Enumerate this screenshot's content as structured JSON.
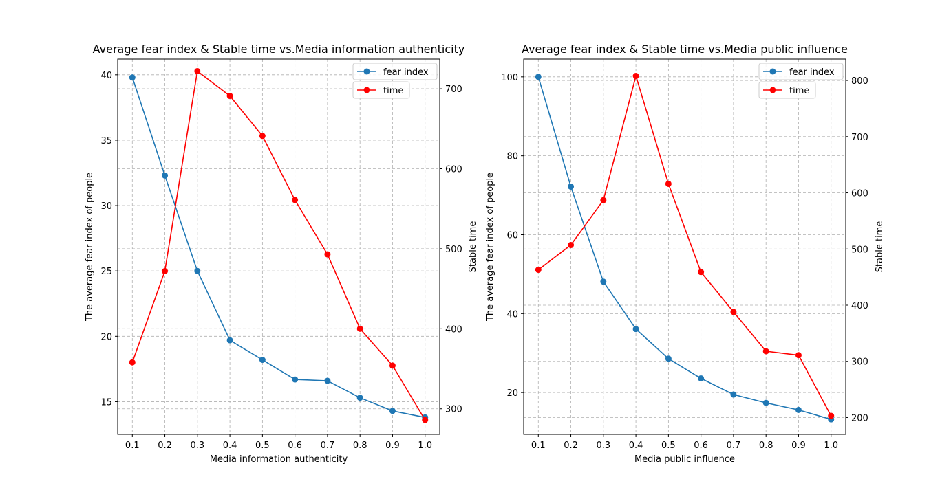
{
  "chart_data": [
    {
      "type": "line",
      "title": "Average fear index & Stable time vs.Media information authenticity",
      "xlabel": "Media information authenticity",
      "ylabel": "The average fear index of people",
      "ylabel_right": "Stable time",
      "x": [
        0.1,
        0.2,
        0.3,
        0.4,
        0.5,
        0.6,
        0.7,
        0.8,
        0.9,
        1.0
      ],
      "x_ticks": [
        "0.1",
        "0.2",
        "0.3",
        "0.4",
        "0.5",
        "0.6",
        "0.7",
        "0.8",
        "0.9",
        "1.0"
      ],
      "xlim": [
        0.055,
        1.045
      ],
      "ylim": [
        12.5,
        41.2
      ],
      "ylim_right": [
        268,
        737
      ],
      "y_ticks": [
        15,
        20,
        25,
        30,
        35,
        40
      ],
      "y_ticks_right": [
        300,
        400,
        500,
        600,
        700
      ],
      "grid": true,
      "legend_position": "top-right",
      "series": [
        {
          "name": "fear index",
          "axis": "left",
          "color": "#1f77b4",
          "values": [
            39.8,
            32.3,
            25.0,
            19.7,
            18.2,
            16.7,
            16.6,
            15.3,
            14.3,
            13.8
          ]
        },
        {
          "name": "time",
          "axis": "right",
          "color": "#ff0000",
          "values": [
            358,
            472,
            722,
            691,
            641,
            561,
            493,
            400,
            354,
            286
          ]
        }
      ]
    },
    {
      "type": "line",
      "title": "Average fear index & Stable time vs.Media public influence",
      "xlabel": "Media public influence",
      "ylabel": "The average fear index of people",
      "ylabel_right": "Stable time",
      "x": [
        0.1,
        0.2,
        0.3,
        0.4,
        0.5,
        0.6,
        0.7,
        0.8,
        0.9,
        1.0
      ],
      "x_ticks": [
        "0.1",
        "0.2",
        "0.3",
        "0.4",
        "0.5",
        "0.6",
        "0.7",
        "0.8",
        "0.9",
        "1.0"
      ],
      "xlim": [
        0.055,
        1.045
      ],
      "ylim": [
        9.4,
        104.5
      ],
      "ylim_right": [
        170,
        838
      ],
      "y_ticks": [
        20,
        40,
        60,
        80,
        100
      ],
      "y_ticks_right": [
        200,
        300,
        400,
        500,
        600,
        700,
        800
      ],
      "grid": true,
      "legend_position": "top-right",
      "series": [
        {
          "name": "fear index",
          "axis": "left",
          "color": "#1f77b4",
          "values": [
            100.0,
            72.2,
            48.1,
            36.1,
            28.6,
            23.6,
            19.5,
            17.4,
            15.6,
            13.2
          ]
        },
        {
          "name": "time",
          "axis": "right",
          "color": "#ff0000",
          "values": [
            463,
            507,
            587,
            808,
            616,
            459,
            388,
            318,
            311,
            203
          ]
        }
      ]
    }
  ]
}
